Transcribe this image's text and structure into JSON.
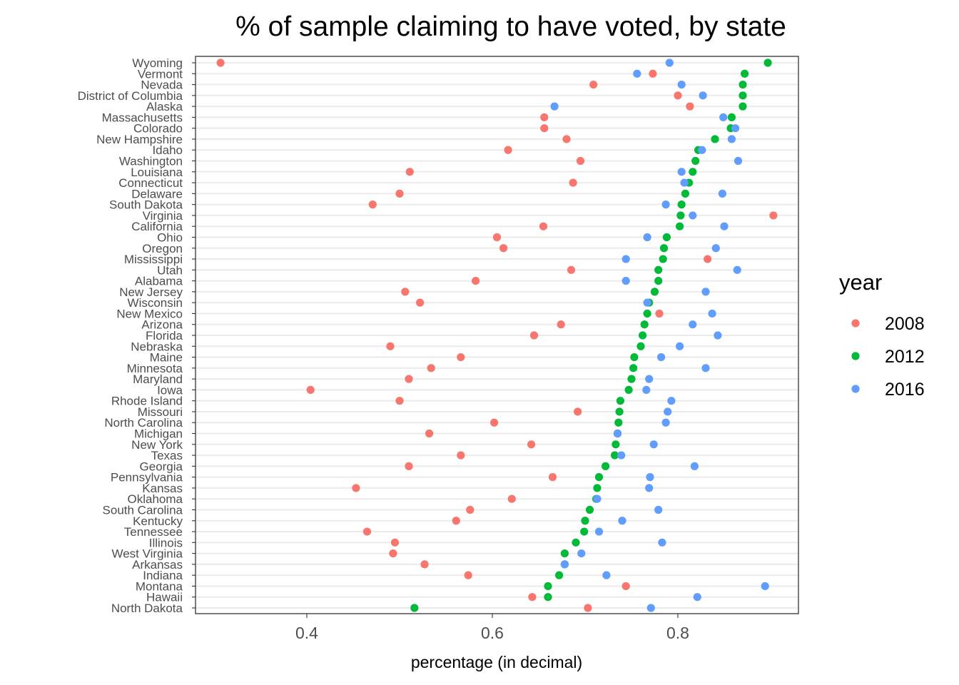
{
  "chart_data": {
    "type": "scatter",
    "title": "% of sample claiming to have voted, by state",
    "xlabel": "percentage (in decimal)",
    "ylabel": "",
    "xlim": [
      0.28,
      0.93
    ],
    "xticks": [
      0.4,
      0.6,
      0.8
    ],
    "xtick_labels": [
      "0.4",
      "0.6",
      "0.8"
    ],
    "grid": "horizontal-major",
    "legend": {
      "title": "year",
      "position": "right"
    },
    "colors": {
      "2008": "#F8766D",
      "2012": "#00BA38",
      "2016": "#619CFF"
    },
    "states": [
      "Wyoming",
      "Vermont",
      "Nevada",
      "District of Columbia",
      "Alaska",
      "Massachusetts",
      "Colorado",
      "New Hampshire",
      "Idaho",
      "Washington",
      "Louisiana",
      "Connecticut",
      "Delaware",
      "South Dakota",
      "Virginia",
      "California",
      "Ohio",
      "Oregon",
      "Mississippi",
      "Utah",
      "Alabama",
      "New Jersey",
      "Wisconsin",
      "New Mexico",
      "Arizona",
      "Florida",
      "Nebraska",
      "Maine",
      "Minnesota",
      "Maryland",
      "Iowa",
      "Rhode Island",
      "Missouri",
      "North Carolina",
      "Michigan",
      "New York",
      "Texas",
      "Georgia",
      "Pennsylvania",
      "Kansas",
      "Oklahoma",
      "South Carolina",
      "Kentucky",
      "Tennessee",
      "Illinois",
      "West Virginia",
      "Arkansas",
      "Indiana",
      "Montana",
      "Hawaii",
      "North Dakota"
    ],
    "series": [
      {
        "name": "2008",
        "values": [
          0.307,
          0.773,
          0.709,
          0.8,
          0.813,
          0.656,
          0.656,
          0.68,
          0.617,
          0.695,
          0.511,
          0.687,
          0.5,
          0.471,
          0.903,
          0.655,
          0.605,
          0.612,
          0.832,
          0.685,
          0.582,
          0.506,
          0.522,
          0.78,
          0.674,
          0.645,
          0.49,
          0.566,
          0.534,
          0.51,
          0.404,
          0.5,
          0.692,
          0.602,
          0.532,
          0.642,
          0.566,
          0.51,
          0.665,
          0.453,
          0.621,
          0.576,
          0.561,
          0.465,
          0.495,
          0.493,
          0.527,
          0.574,
          0.744,
          0.643,
          0.703
        ]
      },
      {
        "name": "2012",
        "values": [
          0.897,
          0.872,
          0.87,
          0.87,
          0.87,
          0.858,
          0.857,
          0.84,
          0.822,
          0.819,
          0.816,
          0.812,
          0.808,
          0.804,
          0.803,
          0.802,
          0.788,
          0.785,
          0.784,
          0.779,
          0.779,
          0.775,
          0.769,
          0.767,
          0.764,
          0.762,
          0.76,
          0.753,
          0.752,
          0.75,
          0.747,
          0.738,
          0.737,
          0.736,
          0.735,
          0.733,
          0.732,
          0.722,
          0.715,
          0.713,
          0.712,
          0.705,
          0.7,
          0.699,
          0.69,
          0.678,
          0.678,
          0.672,
          0.66,
          0.66,
          0.516
        ]
      },
      {
        "name": "2016",
        "values": [
          0.791,
          0.756,
          0.804,
          0.827,
          0.667,
          0.849,
          0.862,
          0.858,
          0.826,
          0.865,
          0.804,
          0.807,
          0.848,
          0.787,
          0.816,
          0.85,
          0.767,
          0.841,
          0.744,
          0.864,
          0.744,
          0.83,
          0.767,
          0.837,
          0.816,
          0.843,
          0.802,
          0.782,
          0.83,
          0.769,
          0.766,
          0.793,
          0.789,
          0.787,
          0.735,
          0.774,
          0.739,
          0.818,
          0.77,
          0.769,
          0.713,
          0.779,
          0.74,
          0.715,
          0.783,
          0.696,
          0.678,
          0.723,
          0.894,
          0.821,
          0.771
        ]
      }
    ]
  }
}
